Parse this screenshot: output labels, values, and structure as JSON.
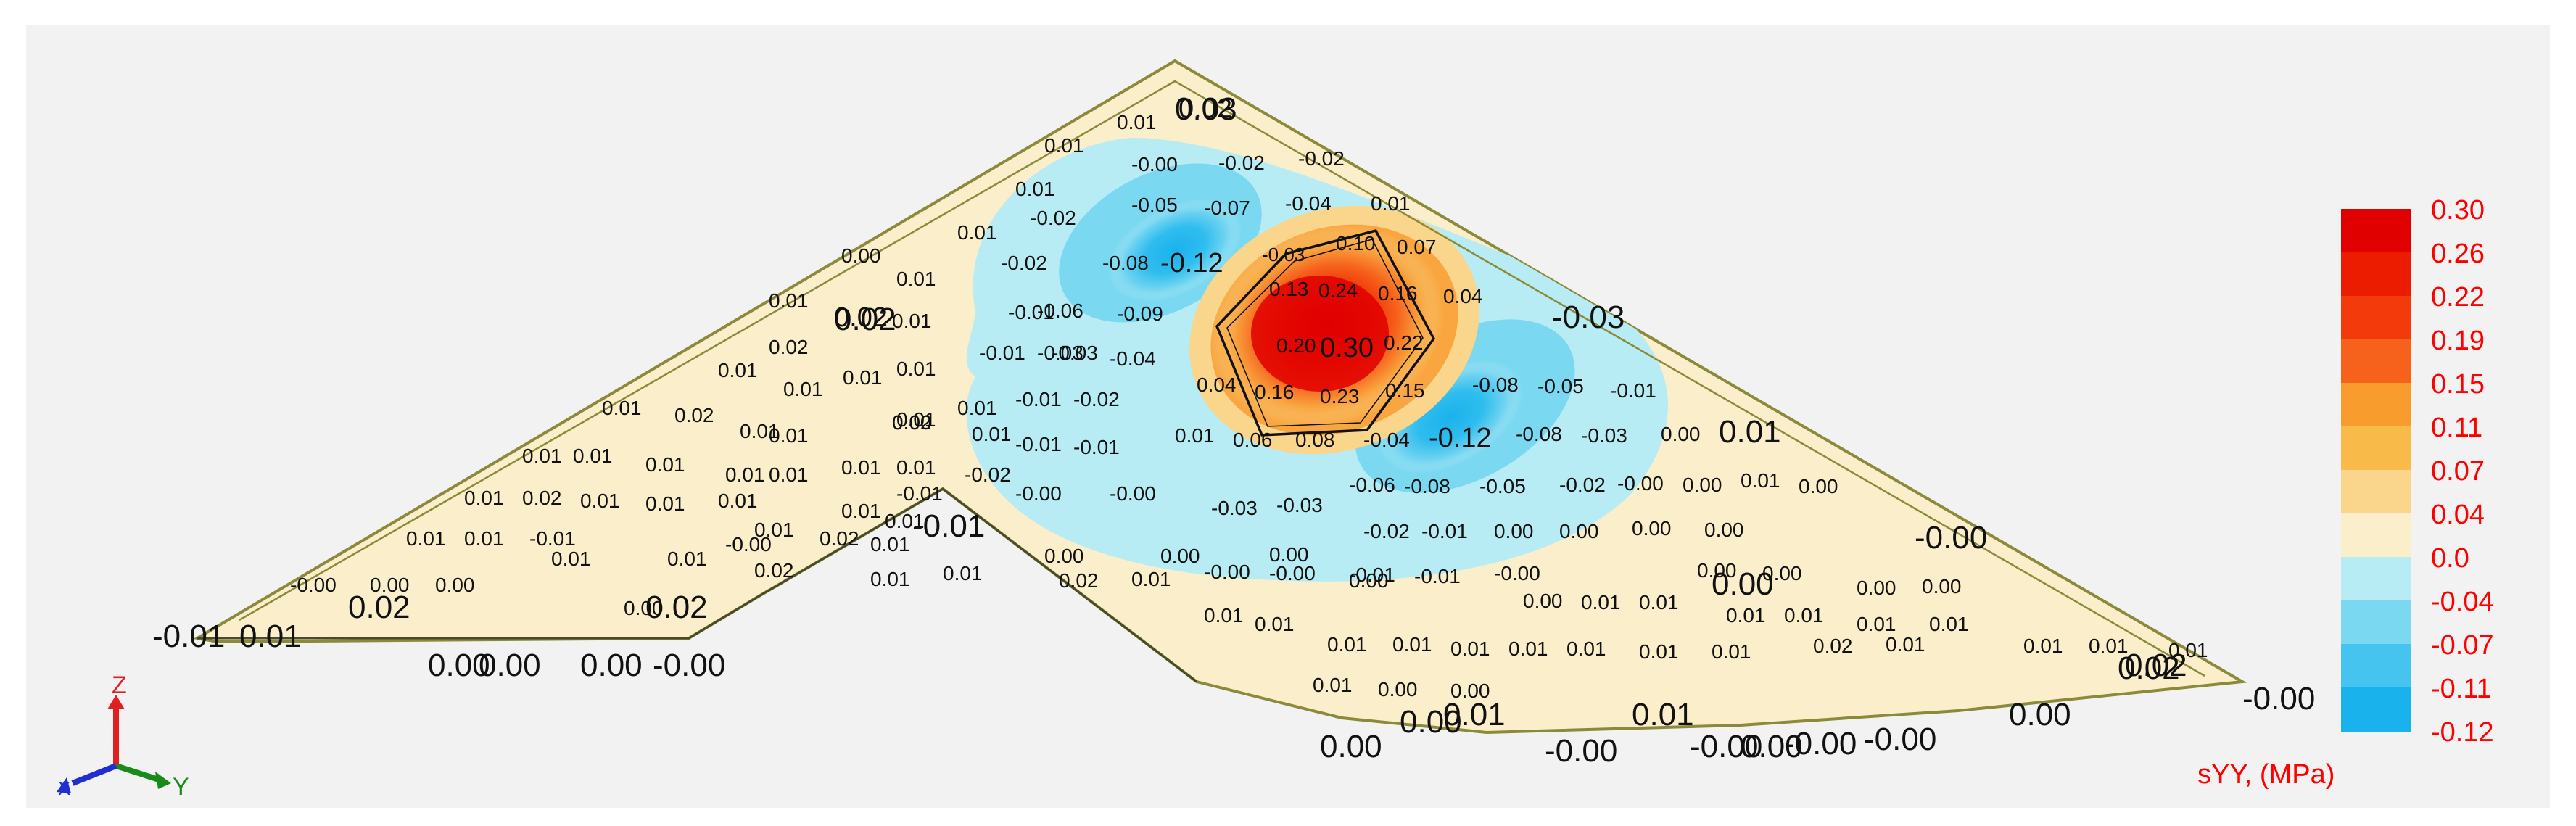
{
  "viewer": {
    "result_quantity": "sYY, (MPa)",
    "axes": {
      "x": "X",
      "y": "Y",
      "z": "Z"
    }
  },
  "legend": {
    "values": [
      "0.30",
      "0.26",
      "0.22",
      "0.19",
      "0.15",
      "0.11",
      "0.07",
      "0.04",
      "0.0",
      "-0.04",
      "-0.07",
      "-0.11",
      "-0.12"
    ],
    "colors": [
      "#e00000",
      "#ec1c00",
      "#f23a0a",
      "#f6621c",
      "#f99c2e",
      "#f8bb4a",
      "#fad58c",
      "#fbeecb",
      "#b8ecf4",
      "#7ad8f1",
      "#44c4ef",
      "#1ab2ec"
    ],
    "text_color": "#ff0000"
  },
  "colors": {
    "plate_fill": "#fbeecb",
    "edge": "#8a8a3a",
    "frame_label": "#111111"
  },
  "contour_labels": [
    "0.02",
    "0.01",
    "0.01",
    "-0.00",
    "-0.02",
    "-0.02",
    "0.01",
    "-0.05",
    "-0.07",
    "-0.04",
    "0.01",
    "-0.02",
    "-0.12",
    "-0.03",
    "0.10",
    "0.07",
    "0.01",
    "-0.02",
    "-0.08",
    "0.13",
    "0.24",
    "0.16",
    "0.04",
    "0.00",
    "0.01",
    "-0.01",
    "-0.06",
    "-0.09",
    "0.01",
    "0.02",
    "0.01",
    "-0.03",
    "0.01",
    "0.02",
    "-0.01",
    "-0.03",
    "-0.04",
    "0.20",
    "0.30",
    "0.22",
    "0.01",
    "0.01",
    "0.02",
    "0.01",
    "0.01",
    "0.01",
    "-0.01",
    "-0.02",
    "0.04",
    "0.16",
    "0.23",
    "0.15",
    "-0.08",
    "-0.05",
    "-0.01",
    "0.01",
    "0.02",
    "0.01",
    "0.01",
    "0.00",
    "-0.01",
    "-0.01",
    "0.01",
    "0.06",
    "0.08",
    "-0.04",
    "-0.12",
    "-0.08",
    "-0.03",
    "0.00",
    "0.01",
    "0.01",
    "0.01",
    "0.01",
    "0.01",
    "0.01",
    "0.01",
    "0.01",
    "-0.00",
    "-0.00",
    "-0.06",
    "-0.08",
    "-0.05",
    "-0.02",
    "-0.00",
    "0.00",
    "0.01",
    "0.00",
    "0.01",
    "0.02",
    "0.01",
    "0.01",
    "0.01",
    "0.01",
    "-0.01",
    "-0.02",
    "0.01",
    "0.01",
    "0.02",
    "0.01",
    "0.01",
    "0.01",
    "-0.01",
    "-0.00",
    "-0.03",
    "-0.03",
    "-0.02",
    "-0.01",
    "0.00",
    "0.00",
    "0.00",
    "0.00",
    "0.01",
    "0.01",
    "0.02",
    "0.01",
    "0.01",
    "0.02",
    "0.01",
    "-0.00",
    "-0.00",
    "-0.01",
    "-0.01",
    "-0.00",
    "-0.00",
    "0.00",
    "0.00",
    "0.00",
    "0.00",
    "0.00",
    "0.00",
    "0.00",
    "0.00",
    "0.00",
    "0.00",
    "0.00",
    "0.00",
    "0.01",
    "0.01",
    "0.01",
    "0.01",
    "0.01",
    "0.01",
    "0.01",
    "0.01",
    "0.01",
    "0.01",
    "0.01",
    "0.01",
    "0.01",
    "0.01",
    "0.01",
    "0.02",
    "0.01",
    "0.01",
    "0.01",
    "0.01",
    "0.01",
    "0.00",
    "0.00"
  ],
  "frame_labels": [
    "0.02",
    "0.03",
    "-0.03",
    "0.01",
    "0.02",
    "0.02",
    "-0.01",
    "-0.01",
    "0.01",
    "0.00",
    "0.00",
    "0.00",
    "-0.00",
    "0.02",
    "0.00",
    "-0.00",
    "0.00",
    "0.01",
    "0.01",
    "0.00",
    "-0.00",
    "-0.00",
    "-0.00",
    "0.00",
    "0.02",
    "-0.00",
    "0.00",
    "-0.00"
  ]
}
